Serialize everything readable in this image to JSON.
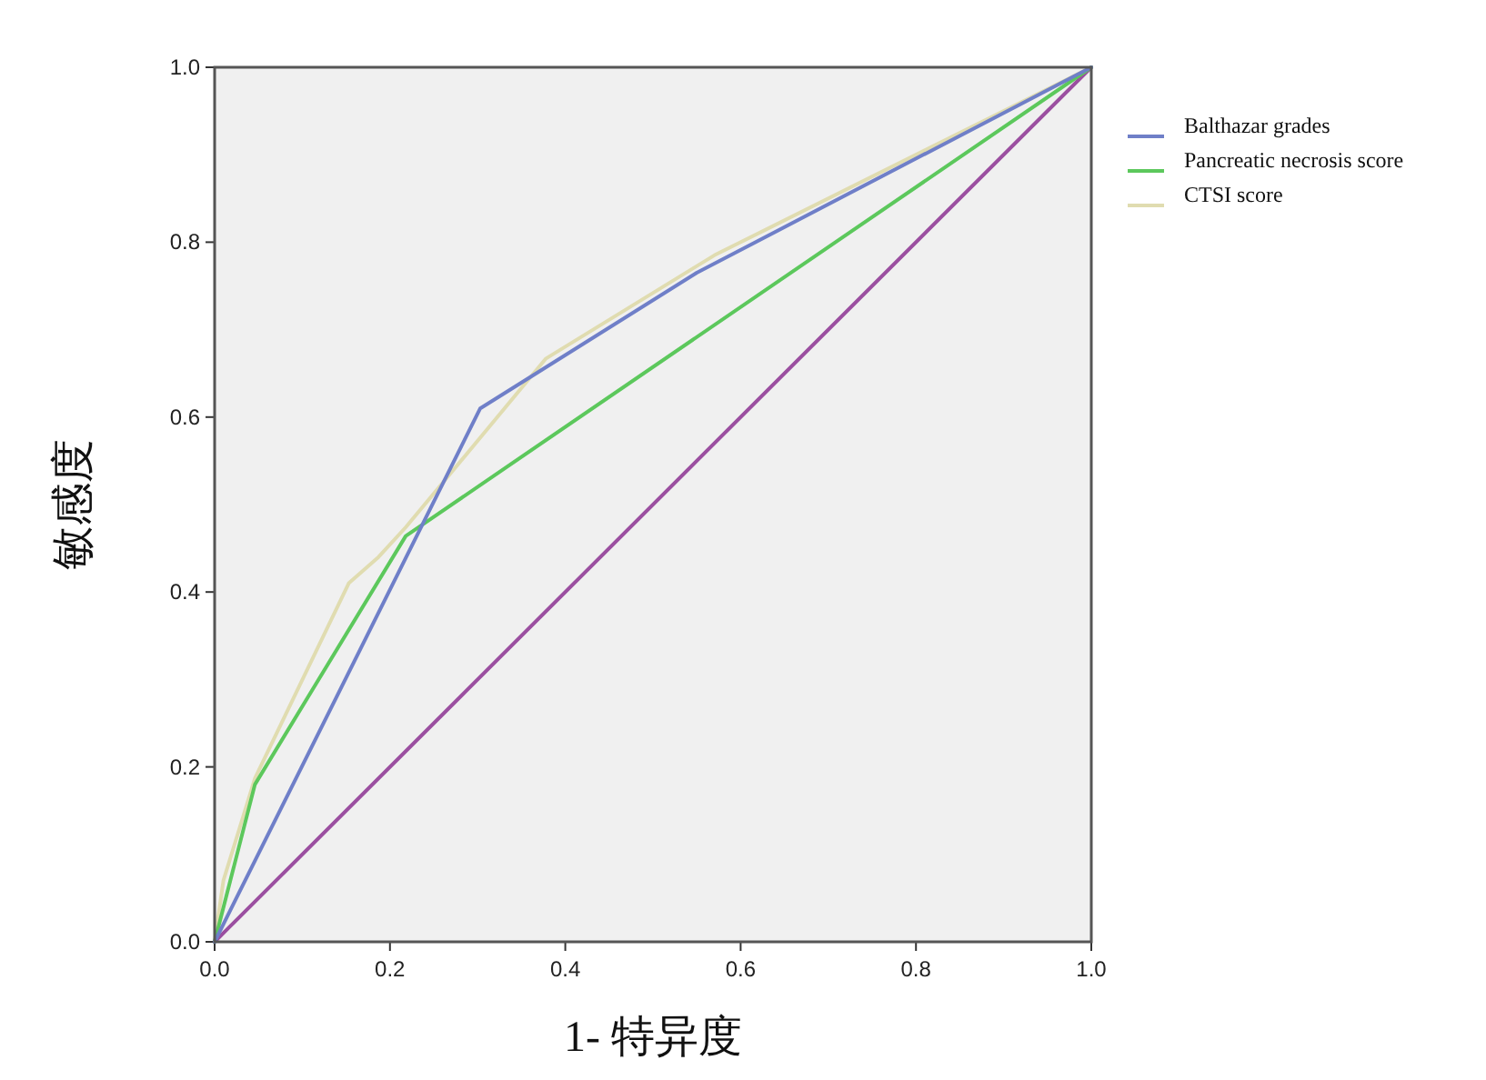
{
  "chart_data": {
    "type": "line",
    "xlabel": "1- 特异度",
    "ylabel": "敏感度",
    "xlim": [
      0,
      1
    ],
    "ylim": [
      0,
      1
    ],
    "xticks": [
      {
        "value": 0,
        "label": "0.0"
      },
      {
        "value": 0.2,
        "label": "0.2"
      },
      {
        "value": 0.4,
        "label": "0.4"
      },
      {
        "value": 0.6,
        "label": "0.6"
      },
      {
        "value": 0.8,
        "label": "0.8"
      },
      {
        "value": 1,
        "label": "1.0"
      }
    ],
    "yticks": [
      {
        "value": 0,
        "label": "0.0"
      },
      {
        "value": 0.2,
        "label": "0.2"
      },
      {
        "value": 0.4,
        "label": "0.4"
      },
      {
        "value": 0.6,
        "label": "0.6"
      },
      {
        "value": 0.8,
        "label": "0.8"
      },
      {
        "value": 1,
        "label": "1.0"
      }
    ],
    "legend": "top right",
    "marker": "none",
    "line_style": "solid",
    "series": [
      {
        "name": "Balthazar grades",
        "color": "#6f7fc8",
        "x": [
          0,
          0.303,
          0.55,
          1
        ],
        "values": [
          0,
          0.61,
          0.765,
          1
        ]
      },
      {
        "name": "Pancreatic necrosis score",
        "color": "#5cc85c",
        "x": [
          0,
          0.046,
          0.218,
          1
        ],
        "values": [
          0,
          0.18,
          0.464,
          1
        ]
      },
      {
        "name": "CTSI score",
        "color": "#e0dcb0",
        "x": [
          0,
          0.01,
          0.046,
          0.153,
          0.187,
          0.218,
          0.378,
          0.57,
          1
        ],
        "values": [
          0,
          0.07,
          0.187,
          0.41,
          0.44,
          0.474,
          0.667,
          0.785,
          1
        ]
      },
      {
        "color": "#9b4fa0",
        "x": [
          0,
          1
        ],
        "values": [
          0,
          1
        ]
      }
    ]
  }
}
